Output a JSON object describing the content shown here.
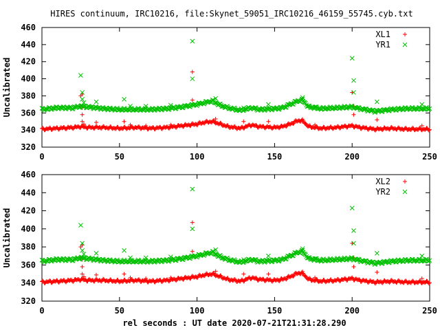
{
  "figure": {
    "title": "HIRES continuum, IRC10216, file:Skynet_59051_IRC10216_46159_55745.cyb.txt",
    "xlabel": "rel seconds : UT date 2020-07-21T21:31:28.290"
  },
  "colors": {
    "xl": "#ff0000",
    "yr": "#00c000",
    "axis": "#000000"
  },
  "chart_data": [
    {
      "type": "scatter",
      "ylabel": "Uncalibrated",
      "xlim": [
        0,
        250
      ],
      "ylim": [
        320,
        460
      ],
      "xticks": [
        0,
        50,
        100,
        150,
        200,
        250
      ],
      "yticks": [
        320,
        340,
        360,
        380,
        400,
        420,
        440,
        460
      ],
      "grid": false,
      "legend_position": "top-right",
      "series": [
        {
          "name": "XL1",
          "marker": "+",
          "baseline": [
            [
              0,
              341
            ],
            [
              10,
              342
            ],
            [
              20,
              343
            ],
            [
              25,
              344
            ],
            [
              30,
              343
            ],
            [
              40,
              343
            ],
            [
              50,
              342
            ],
            [
              60,
              343
            ],
            [
              70,
              342
            ],
            [
              80,
              343
            ],
            [
              90,
              345
            ],
            [
              100,
              347
            ],
            [
              105,
              349
            ],
            [
              110,
              350
            ],
            [
              115,
              347
            ],
            [
              120,
              344
            ],
            [
              128,
              342
            ],
            [
              135,
              346
            ],
            [
              140,
              344
            ],
            [
              150,
              343
            ],
            [
              155,
              344
            ],
            [
              160,
              347
            ],
            [
              165,
              351
            ],
            [
              168,
              351
            ],
            [
              172,
              344
            ],
            [
              180,
              342
            ],
            [
              190,
              343
            ],
            [
              200,
              345
            ],
            [
              205,
              343
            ],
            [
              215,
              341
            ],
            [
              225,
              342
            ],
            [
              235,
              341
            ],
            [
              250,
              341
            ]
          ],
          "outliers": [
            [
              25,
              380
            ],
            [
              26,
              382
            ],
            [
              25,
              368
            ],
            [
              26,
              358
            ],
            [
              26,
              350
            ],
            [
              27,
              347
            ],
            [
              97,
              408
            ],
            [
              97,
              375
            ],
            [
              26,
              366
            ],
            [
              35,
              349
            ],
            [
              53,
              350
            ],
            [
              57,
              346
            ],
            [
              67,
              345
            ],
            [
              83,
              346
            ],
            [
              112,
              353
            ],
            [
              130,
              350
            ],
            [
              146,
              350
            ],
            [
              168,
              350
            ],
            [
              176,
              346
            ],
            [
              200,
              384
            ],
            [
              201,
              368
            ],
            [
              201,
              358
            ],
            [
              216,
              352
            ],
            [
              245,
              345
            ]
          ]
        },
        {
          "name": "YR1",
          "marker": "x",
          "baseline": [
            [
              0,
              364
            ],
            [
              10,
              366
            ],
            [
              20,
              366
            ],
            [
              25,
              368
            ],
            [
              30,
              367
            ],
            [
              40,
              365
            ],
            [
              50,
              364
            ],
            [
              60,
              364
            ],
            [
              70,
              364
            ],
            [
              80,
              365
            ],
            [
              90,
              367
            ],
            [
              100,
              370
            ],
            [
              105,
              372
            ],
            [
              110,
              374
            ],
            [
              115,
              369
            ],
            [
              120,
              366
            ],
            [
              128,
              363
            ],
            [
              135,
              366
            ],
            [
              140,
              364
            ],
            [
              150,
              365
            ],
            [
              155,
              366
            ],
            [
              160,
              370
            ],
            [
              165,
              374
            ],
            [
              168,
              375
            ],
            [
              172,
              367
            ],
            [
              180,
              365
            ],
            [
              190,
              366
            ],
            [
              200,
              367
            ],
            [
              205,
              365
            ],
            [
              215,
              362
            ],
            [
              225,
              364
            ],
            [
              235,
              365
            ],
            [
              250,
              365
            ]
          ],
          "outliers": [
            [
              25,
              404
            ],
            [
              26,
              384
            ],
            [
              26,
              376
            ],
            [
              27,
              372
            ],
            [
              35,
              373
            ],
            [
              53,
              376
            ],
            [
              57,
              368
            ],
            [
              67,
              368
            ],
            [
              83,
              369
            ],
            [
              97,
              444
            ],
            [
              97,
              400
            ],
            [
              112,
              377
            ],
            [
              130,
              366
            ],
            [
              146,
              370
            ],
            [
              168,
              378
            ],
            [
              176,
              367
            ],
            [
              200,
              424
            ],
            [
              201,
              398
            ],
            [
              201,
              384
            ],
            [
              216,
              373
            ],
            [
              245,
              370
            ]
          ]
        }
      ]
    },
    {
      "type": "scatter",
      "ylabel": "Uncalibrated",
      "xlim": [
        0,
        250
      ],
      "ylim": [
        320,
        460
      ],
      "xticks": [
        0,
        50,
        100,
        150,
        200,
        250
      ],
      "yticks": [
        320,
        340,
        360,
        380,
        400,
        420,
        440,
        460
      ],
      "grid": false,
      "legend_position": "top-right",
      "series": [
        {
          "name": "XL2",
          "marker": "+",
          "baseline": [
            [
              0,
              341
            ],
            [
              10,
              342
            ],
            [
              20,
              343
            ],
            [
              25,
              344
            ],
            [
              30,
              343
            ],
            [
              40,
              343
            ],
            [
              50,
              342
            ],
            [
              60,
              343
            ],
            [
              70,
              342
            ],
            [
              80,
              343
            ],
            [
              90,
              345
            ],
            [
              100,
              347
            ],
            [
              105,
              349
            ],
            [
              110,
              350
            ],
            [
              115,
              347
            ],
            [
              120,
              344
            ],
            [
              128,
              342
            ],
            [
              135,
              346
            ],
            [
              140,
              344
            ],
            [
              150,
              343
            ],
            [
              155,
              344
            ],
            [
              160,
              347
            ],
            [
              165,
              351
            ],
            [
              168,
              351
            ],
            [
              172,
              344
            ],
            [
              180,
              342
            ],
            [
              190,
              343
            ],
            [
              200,
              345
            ],
            [
              205,
              343
            ],
            [
              215,
              341
            ],
            [
              225,
              342
            ],
            [
              235,
              341
            ],
            [
              250,
              341
            ]
          ],
          "outliers": [
            [
              25,
              380
            ],
            [
              26,
              382
            ],
            [
              25,
              368
            ],
            [
              26,
              358
            ],
            [
              26,
              350
            ],
            [
              27,
              347
            ],
            [
              97,
              407
            ],
            [
              97,
              375
            ],
            [
              26,
              366
            ],
            [
              35,
              349
            ],
            [
              53,
              350
            ],
            [
              57,
              346
            ],
            [
              67,
              345
            ],
            [
              83,
              346
            ],
            [
              112,
              353
            ],
            [
              130,
              350
            ],
            [
              146,
              350
            ],
            [
              168,
              350
            ],
            [
              176,
              346
            ],
            [
              200,
              384
            ],
            [
              201,
              368
            ],
            [
              201,
              358
            ],
            [
              216,
              352
            ],
            [
              245,
              345
            ]
          ]
        },
        {
          "name": "YR2",
          "marker": "x",
          "baseline": [
            [
              0,
              364
            ],
            [
              10,
              366
            ],
            [
              20,
              366
            ],
            [
              25,
              368
            ],
            [
              30,
              367
            ],
            [
              40,
              365
            ],
            [
              50,
              364
            ],
            [
              60,
              364
            ],
            [
              70,
              364
            ],
            [
              80,
              365
            ],
            [
              90,
              367
            ],
            [
              100,
              370
            ],
            [
              105,
              372
            ],
            [
              110,
              374
            ],
            [
              115,
              369
            ],
            [
              120,
              366
            ],
            [
              128,
              363
            ],
            [
              135,
              366
            ],
            [
              140,
              364
            ],
            [
              150,
              365
            ],
            [
              155,
              366
            ],
            [
              160,
              370
            ],
            [
              165,
              374
            ],
            [
              168,
              375
            ],
            [
              172,
              367
            ],
            [
              180,
              365
            ],
            [
              190,
              366
            ],
            [
              200,
              367
            ],
            [
              205,
              365
            ],
            [
              215,
              362
            ],
            [
              225,
              364
            ],
            [
              235,
              365
            ],
            [
              250,
              365
            ]
          ],
          "outliers": [
            [
              25,
              404
            ],
            [
              26,
              384
            ],
            [
              26,
              376
            ],
            [
              27,
              372
            ],
            [
              35,
              373
            ],
            [
              53,
              376
            ],
            [
              57,
              368
            ],
            [
              67,
              368
            ],
            [
              83,
              369
            ],
            [
              97,
              444
            ],
            [
              97,
              400
            ],
            [
              112,
              377
            ],
            [
              130,
              366
            ],
            [
              146,
              370
            ],
            [
              168,
              378
            ],
            [
              176,
              367
            ],
            [
              200,
              423
            ],
            [
              201,
              398
            ],
            [
              201,
              384
            ],
            [
              216,
              373
            ],
            [
              245,
              370
            ]
          ]
        }
      ]
    }
  ]
}
